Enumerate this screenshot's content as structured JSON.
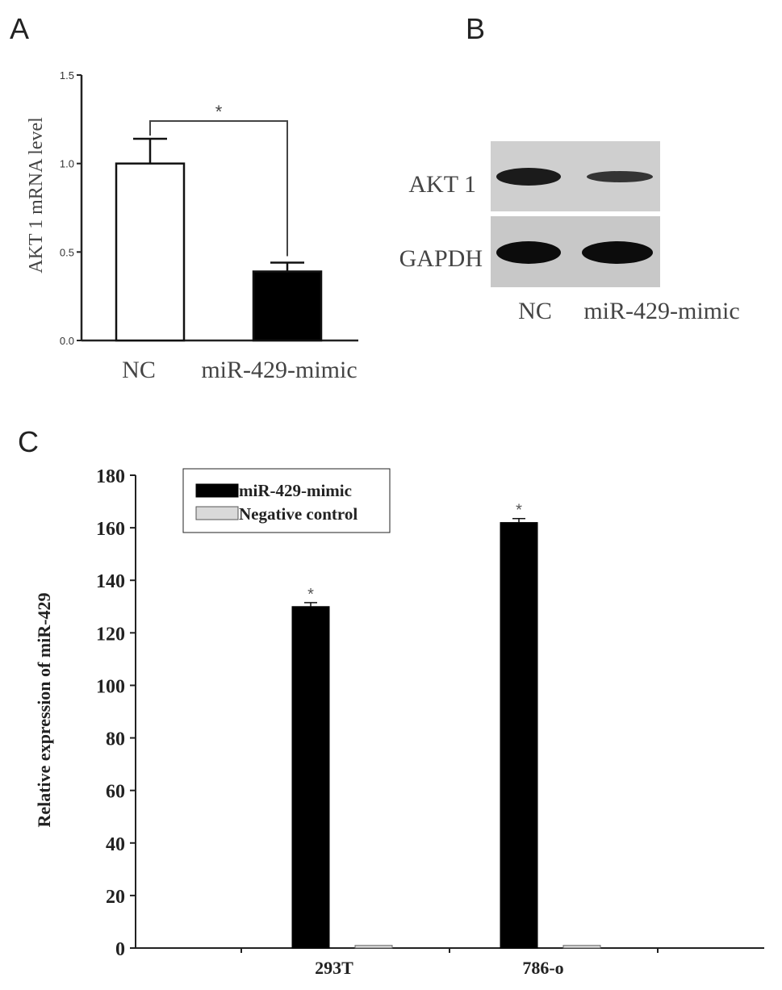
{
  "panels": {
    "A": {
      "letter": "A",
      "chart_data": {
        "type": "bar",
        "categories": [
          "NC",
          "miR-429-mimic"
        ],
        "values": [
          1.0,
          0.39
        ],
        "errors": [
          0.14,
          0.05
        ],
        "ylabel": "AKT 1 mRNA  level",
        "ylim": [
          0,
          1.5
        ],
        "yticks": [
          "0.0",
          "0.5",
          "1.0",
          "1.5"
        ],
        "bar_colors": [
          "#ffffff",
          "#000000"
        ],
        "significance": "*"
      }
    },
    "B": {
      "letter": "B",
      "blot_rows": [
        "AKT 1",
        "GAPDH"
      ],
      "lanes": [
        "NC",
        "miR-429-mimic"
      ]
    },
    "C": {
      "letter": "C",
      "chart_data": {
        "type": "bar",
        "categories": [
          "293T",
          "786-o"
        ],
        "series": [
          {
            "name": "miR-429-mimic",
            "values": [
              130,
              162
            ],
            "errors": [
              1.5,
              1.5
            ],
            "color": "#000000"
          },
          {
            "name": "Negative control",
            "values": [
              1,
              1
            ],
            "errors": [
              0,
              0
            ],
            "color": "#d9d9d9"
          }
        ],
        "ylabel": "Relative expression of miR-429",
        "ylim": [
          0,
          180
        ],
        "yticks": [
          "0",
          "20",
          "40",
          "60",
          "80",
          "100",
          "120",
          "140",
          "160",
          "180"
        ],
        "legend_position": "top-left",
        "significance": [
          "*",
          "*"
        ]
      }
    }
  }
}
